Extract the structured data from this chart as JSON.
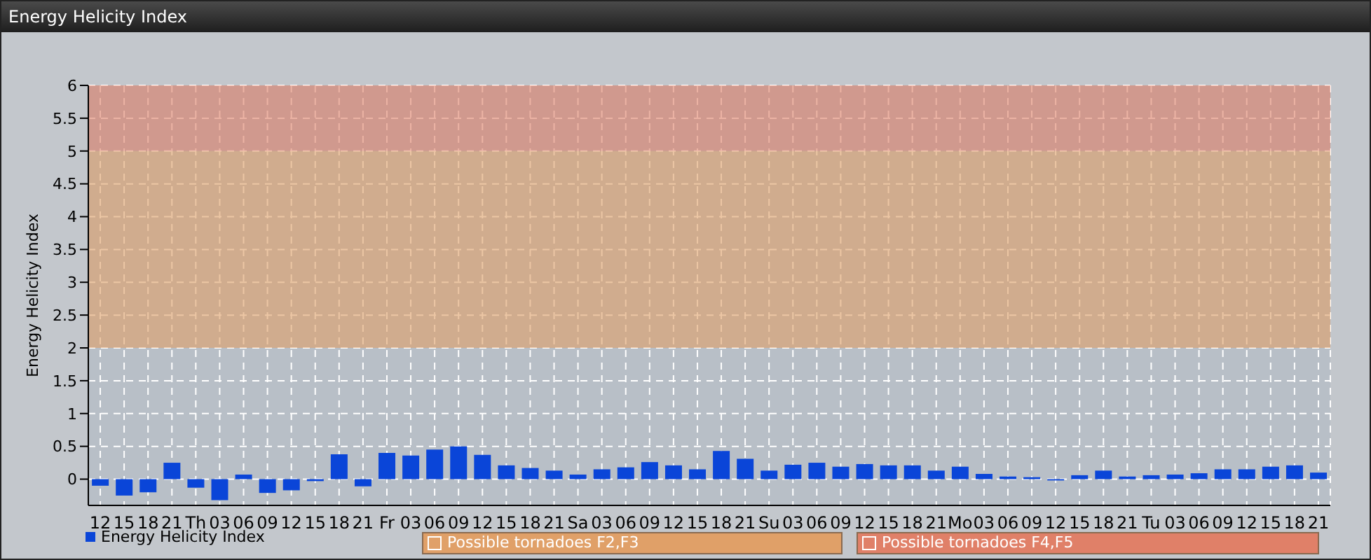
{
  "chart_data": {
    "type": "bar",
    "title": "Energy Helicity Index",
    "ylabel": "Energy Helicity Index",
    "categories": [
      "12",
      "15",
      "18",
      "21",
      "Th",
      "03",
      "06",
      "09",
      "12",
      "15",
      "18",
      "21",
      "Fr",
      "03",
      "06",
      "09",
      "12",
      "15",
      "18",
      "21",
      "Sa",
      "03",
      "06",
      "09",
      "12",
      "15",
      "18",
      "21",
      "Su",
      "03",
      "06",
      "09",
      "12",
      "15",
      "18",
      "21",
      "Mo",
      "03",
      "06",
      "09",
      "12",
      "15",
      "18",
      "21",
      "Tu",
      "03",
      "06",
      "09",
      "12",
      "15",
      "18",
      "21"
    ],
    "series": [
      {
        "name": "Energy Helicity Index",
        "color": "#0a45d8",
        "values": [
          -0.1,
          -0.25,
          -0.2,
          0.25,
          -0.13,
          -0.32,
          0.07,
          -0.21,
          -0.17,
          -0.03,
          0.38,
          -0.11,
          0.4,
          0.36,
          0.45,
          0.5,
          0.37,
          0.21,
          0.17,
          0.13,
          0.07,
          0.15,
          0.18,
          0.26,
          0.21,
          0.15,
          0.43,
          0.31,
          0.13,
          0.22,
          0.25,
          0.19,
          0.23,
          0.21,
          0.21,
          0.13,
          0.19,
          0.08,
          0.04,
          0.03,
          -0.02,
          0.06,
          0.13,
          0.04,
          0.06,
          0.07,
          0.09,
          0.15,
          0.15,
          0.19,
          0.21,
          0.1
        ]
      }
    ],
    "ylim": [
      -0.4,
      6
    ],
    "yticks": [
      0,
      0.5,
      1,
      1.5,
      2,
      2.5,
      3,
      3.5,
      4,
      4.5,
      5,
      5.5,
      6
    ],
    "bands": [
      {
        "axis": "y",
        "from": 2,
        "to": 5,
        "label": "Possible tornadoes F2,F3",
        "color": "#e0a068"
      },
      {
        "axis": "y",
        "from": 5,
        "to": 6,
        "label": "Possible tornadoes F4,F5",
        "color": "#e08068"
      }
    ],
    "grid": true,
    "legend": "bottom left"
  }
}
